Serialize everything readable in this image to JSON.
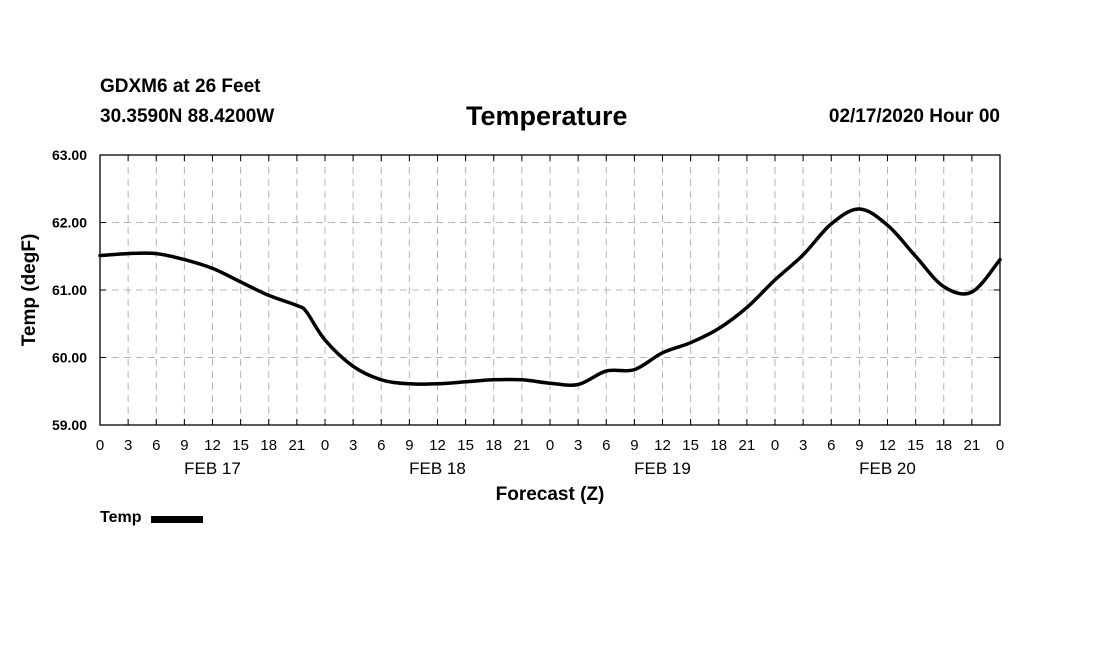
{
  "header": {
    "station": "GDXM6 at 26 Feet",
    "coords": "30.3590N 88.4200W",
    "issued": "02/17/2020 Hour 00"
  },
  "chart_data": {
    "type": "line",
    "title": "Temperature",
    "xlabel": "Forecast (Z)",
    "ylabel": "Temp (degF)",
    "ylim": [
      59,
      63
    ],
    "yticks": [
      "59.00",
      "60.00",
      "61.00",
      "62.00",
      "63.00"
    ],
    "xlim_hours": [
      0,
      96
    ],
    "xtick_step_hours": 3,
    "xtick_labels": [
      "0",
      "3",
      "6",
      "9",
      "12",
      "15",
      "18",
      "21",
      "0",
      "3",
      "6",
      "9",
      "12",
      "15",
      "18",
      "21",
      "0",
      "3",
      "6",
      "9",
      "12",
      "15",
      "18",
      "21",
      "0",
      "3",
      "6",
      "9",
      "12",
      "15",
      "18",
      "21",
      "0"
    ],
    "day_labels": [
      {
        "label": "FEB 17",
        "hour": 12
      },
      {
        "label": "FEB 18",
        "hour": 36
      },
      {
        "label": "FEB 19",
        "hour": 60
      },
      {
        "label": "FEB 20",
        "hour": 84
      }
    ],
    "grid": true,
    "legend": {
      "position": "bottom-left",
      "entries": [
        "Temp"
      ]
    },
    "series": [
      {
        "name": "Temp",
        "color": "#000000",
        "x": [
          0,
          3,
          6,
          9,
          12,
          15,
          18,
          21,
          22,
          24,
          27,
          30,
          33,
          36,
          39,
          42,
          45,
          48,
          51,
          54,
          57,
          60,
          63,
          66,
          69,
          72,
          75,
          78,
          81,
          84,
          87,
          90,
          93,
          96
        ],
        "values": [
          61.51,
          61.54,
          61.54,
          61.45,
          61.32,
          61.12,
          60.92,
          60.77,
          60.68,
          60.26,
          59.87,
          59.67,
          59.61,
          59.61,
          59.64,
          59.67,
          59.67,
          59.62,
          59.6,
          59.8,
          59.82,
          60.07,
          60.22,
          60.43,
          60.74,
          61.15,
          61.52,
          61.98,
          62.2,
          61.96,
          61.5,
          61.05,
          60.97,
          61.45
        ]
      }
    ]
  }
}
